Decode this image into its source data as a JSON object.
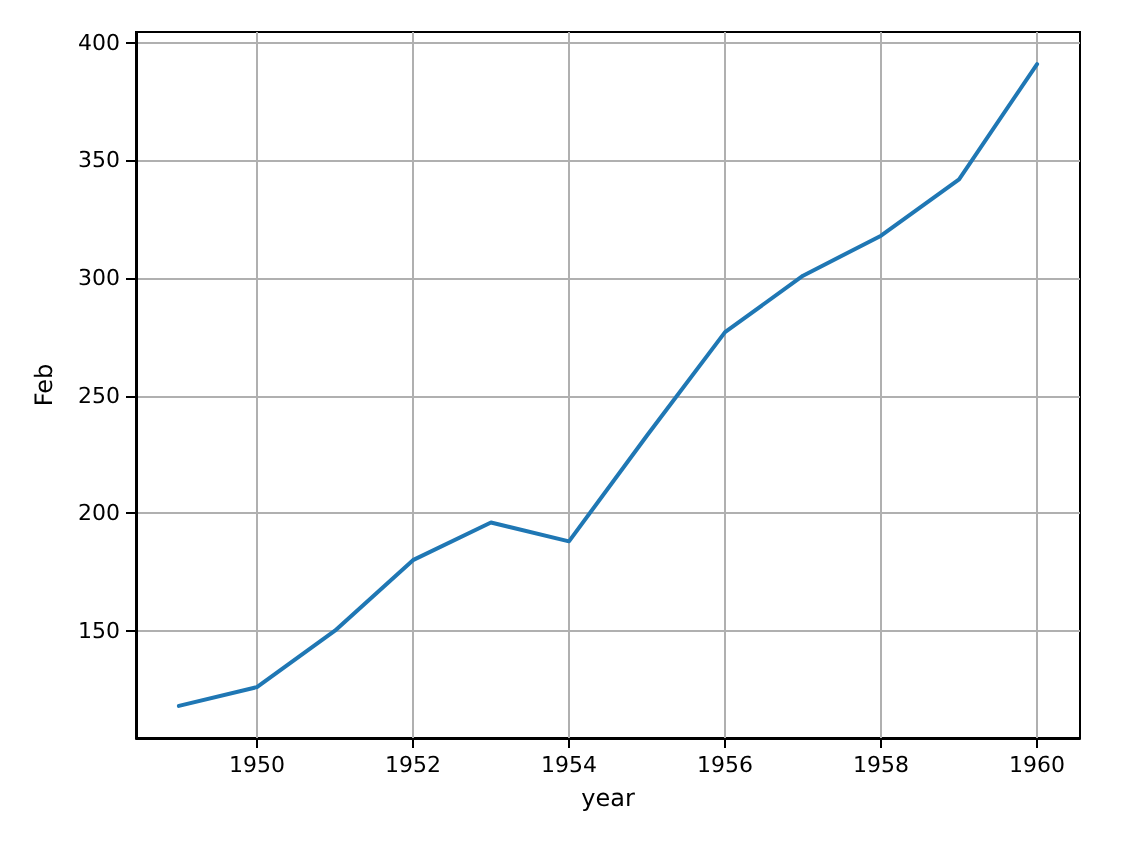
{
  "chart_data": {
    "type": "line",
    "xlabel": "year",
    "ylabel": "Feb",
    "x": [
      1949,
      1950,
      1951,
      1952,
      1953,
      1954,
      1955,
      1956,
      1957,
      1958,
      1959,
      1960
    ],
    "series": [
      {
        "color": "#1f77b4",
        "values": [
          118,
          126,
          150,
          180,
          196,
          188,
          233,
          277,
          301,
          318,
          342,
          391
        ]
      }
    ],
    "xlim": [
      1948.45,
      1960.55
    ],
    "ylim": [
      104.35,
      404.65
    ],
    "xticks": [
      1950,
      1952,
      1954,
      1956,
      1958,
      1960
    ],
    "yticks": [
      150,
      200,
      250,
      300,
      350,
      400
    ],
    "grid": true,
    "marker": "none",
    "line_style": "solid"
  }
}
